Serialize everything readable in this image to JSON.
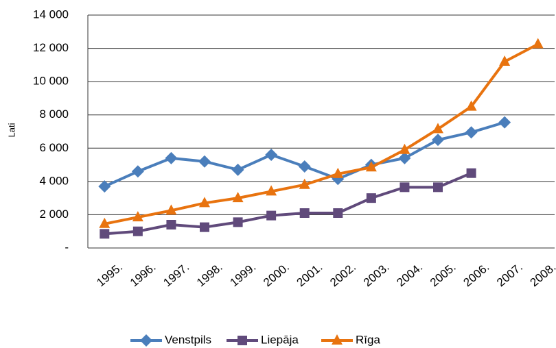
{
  "chart_data": {
    "type": "line",
    "y_label": "Lati",
    "categories": [
      "1995.",
      "1996.",
      "1997.",
      "1998.",
      "1999.",
      "2000.",
      "2001.",
      "2002.",
      "2003.",
      "2004.",
      "2005.",
      "2006.",
      "2007.",
      "2008."
    ],
    "series": [
      {
        "name": "Venstpils",
        "color": "#4a7ebb",
        "marker": "diamond",
        "values": [
          3700,
          4600,
          5400,
          5200,
          4700,
          5600,
          4900,
          4150,
          5000,
          5400,
          6500,
          6950,
          7550,
          null
        ]
      },
      {
        "name": "Liepāja",
        "color": "#604a7b",
        "marker": "square",
        "values": [
          850,
          1000,
          1400,
          1250,
          1550,
          1950,
          2100,
          2100,
          3000,
          3650,
          3650,
          4500,
          null,
          null
        ]
      },
      {
        "name": "Rīga",
        "color": "#e8730f",
        "marker": "triangle",
        "values": [
          1450,
          1850,
          2250,
          2700,
          3000,
          3400,
          3800,
          4450,
          4850,
          5900,
          7150,
          8500,
          11200,
          12250
        ]
      }
    ],
    "ylim": [
      0,
      14000
    ],
    "yticks": [
      {
        "value": 0,
        "label": "-"
      },
      {
        "value": 2000,
        "label": "2 000"
      },
      {
        "value": 4000,
        "label": "4 000"
      },
      {
        "value": 6000,
        "label": "6 000"
      },
      {
        "value": 8000,
        "label": "8 000"
      },
      {
        "value": 10000,
        "label": "10 000"
      },
      {
        "value": 12000,
        "label": "12 000"
      },
      {
        "value": 14000,
        "label": "14 000"
      }
    ],
    "grid": true,
    "legend": "bottom"
  }
}
